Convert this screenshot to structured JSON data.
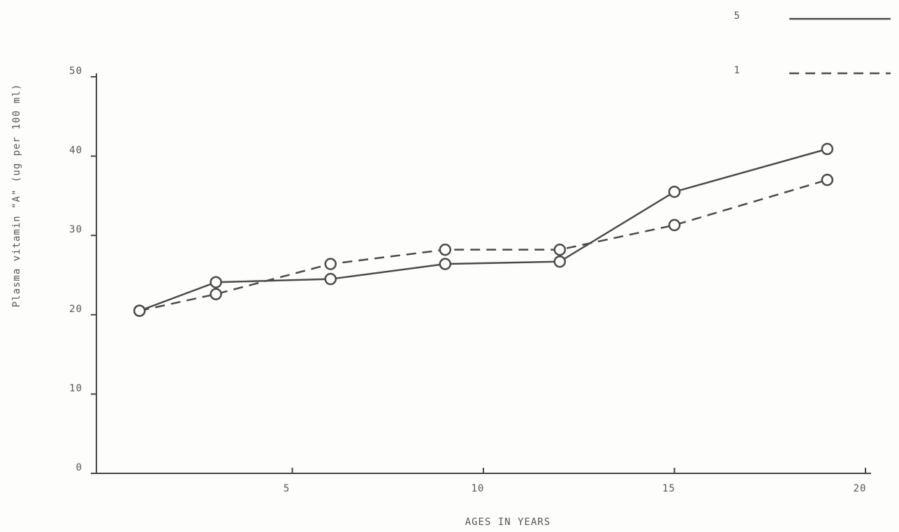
{
  "chart_data": {
    "type": "line",
    "x_label": "AGES IN YEARS",
    "y_label": "Plasma vitamin \"A\" (ug per 100 ml)",
    "x": [
      1,
      3,
      6,
      9,
      12,
      15,
      19
    ],
    "series": [
      {
        "name": "5",
        "color": "#4a4a4a",
        "dash": "solid",
        "values": [
          20.5,
          24.1,
          24.5,
          26.4,
          26.7,
          35.5,
          40.9
        ]
      },
      {
        "name": "1",
        "color": "#4a4a4a",
        "dash": "dashed",
        "values": [
          20.5,
          22.6,
          26.4,
          28.2,
          28.2,
          31.3,
          37
        ]
      }
    ],
    "xlim": [
      0,
      20
    ],
    "ylim": [
      0,
      50
    ],
    "xticks": [
      5,
      10,
      15,
      20
    ],
    "yticks": [
      0,
      10,
      20,
      30,
      40,
      50
    ],
    "grid": false,
    "legend": "top-right"
  }
}
